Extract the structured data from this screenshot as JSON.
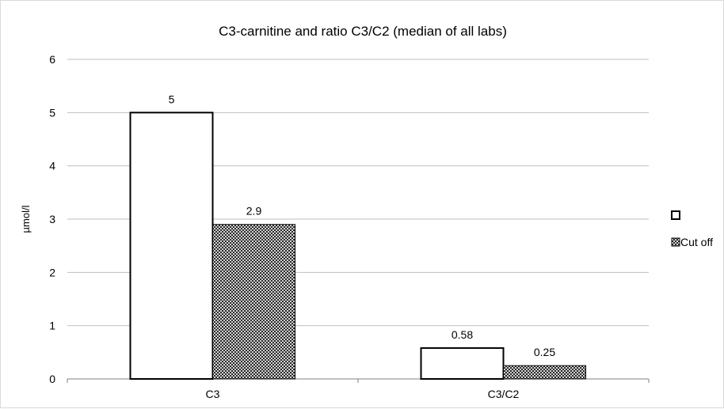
{
  "chart_data": {
    "type": "bar",
    "title": "C3-carnitine and ratio C3/C2 (median of all labs)",
    "xlabel": "",
    "ylabel": "µmol/l",
    "categories": [
      "C3",
      "C3/C2"
    ],
    "ylim": [
      0,
      6
    ],
    "yticks": [
      "0",
      "1",
      "2",
      "3",
      "4",
      "5",
      "6"
    ],
    "grid": true,
    "legend_position": "right",
    "series": [
      {
        "name": "",
        "values": [
          5,
          0.58
        ],
        "labels": [
          "5",
          "0.58"
        ],
        "fill": "#ffffff",
        "stroke": "#000000",
        "pattern": "solid"
      },
      {
        "name": "Cut off",
        "values": [
          2.9,
          0.25
        ],
        "labels": [
          "2.9",
          "0.25"
        ],
        "fill": "#ffffff",
        "stroke": "#000000",
        "pattern": "crosshatch"
      }
    ]
  }
}
